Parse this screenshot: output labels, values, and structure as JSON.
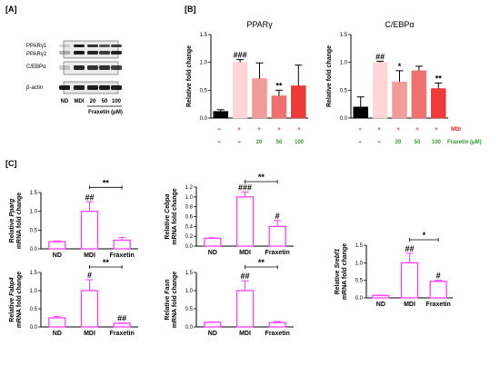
{
  "panel_labels": {
    "a": "[A]",
    "b": "[B]",
    "c": "[C]"
  },
  "colors": {
    "bar_b": [
      "#000000",
      "#ffd6d6",
      "#f29b9b",
      "#f07070",
      "#ef3a3a"
    ],
    "bar_c": "#ff3dff",
    "mdi_text": "#e02020",
    "fraxetin_text": "#2e9a2e"
  },
  "western_blot": {
    "bands": [
      "PPARγ1",
      "PPARγ2",
      "C/EBPα",
      "β-actin"
    ],
    "lanes": [
      "ND",
      "MDI",
      "20",
      "50",
      "100"
    ],
    "treatment_label": "Fraxetin (μM)"
  },
  "conditions": {
    "mdi_row": [
      "−",
      "+",
      "+",
      "+",
      "+"
    ],
    "mdi_label": "MDI",
    "fraxetin_row": [
      "−",
      "−",
      "20",
      "50",
      "100"
    ],
    "fraxetin_label": "Fraxetin (μM)"
  },
  "chart_data": [
    {
      "type": "bar",
      "panel": "B",
      "title": "PPARγ",
      "ylabel": "Relative fold change",
      "categories": [
        "ND",
        "MDI",
        "20",
        "50",
        "100"
      ],
      "values": [
        0.12,
        1.0,
        0.71,
        0.4,
        0.58
      ],
      "errors": [
        0.03,
        0.05,
        0.28,
        0.1,
        0.37
      ],
      "significance": [
        "",
        "###",
        "",
        "**",
        ""
      ],
      "ylim": [
        0,
        1.5
      ],
      "yticks": [
        "0.0",
        "0.5",
        "1.0",
        "1.5"
      ]
    },
    {
      "type": "bar",
      "panel": "B",
      "title": "C/EBPα",
      "ylabel": "Relative fold change",
      "categories": [
        "ND",
        "MDI",
        "20",
        "50",
        "100"
      ],
      "values": [
        0.2,
        1.0,
        0.65,
        0.85,
        0.53
      ],
      "errors": [
        0.18,
        0.02,
        0.2,
        0.08,
        0.1
      ],
      "significance": [
        "",
        "##",
        "*",
        "",
        "**"
      ],
      "ylim": [
        0,
        1.5
      ],
      "yticks": [
        "0.0",
        "0.5",
        "1.0",
        "1.5"
      ]
    },
    {
      "type": "bar",
      "panel": "C",
      "gene": "Pparg",
      "ylabel_pre": "Relative ",
      "ylabel_line2": "mRNA fold change",
      "categories": [
        "ND",
        "MDI",
        "Fraxetin"
      ],
      "values": [
        0.19,
        1.0,
        0.23
      ],
      "errors": [
        0.02,
        0.25,
        0.07
      ],
      "significance": [
        "",
        "##",
        ""
      ],
      "bracket": "**",
      "ylim": [
        0,
        1.5
      ],
      "yticks": [
        "0.0",
        "0.5",
        "1.0",
        "1.5"
      ]
    },
    {
      "type": "bar",
      "panel": "C",
      "gene": "Cebpa",
      "ylabel_pre": "Relative ",
      "ylabel_line2": "mRNA fold change",
      "categories": [
        "ND",
        "MDI",
        "Fraxetin"
      ],
      "values": [
        0.16,
        1.0,
        0.4
      ],
      "errors": [
        0.01,
        0.1,
        0.12
      ],
      "significance": [
        "",
        "###",
        "#"
      ],
      "bracket": "**",
      "ylim": [
        0,
        1.2
      ],
      "yticks": [
        "0.0",
        "0.2",
        "0.4",
        "0.6",
        "0.8",
        "1.0",
        "1.2"
      ]
    },
    {
      "type": "bar",
      "panel": "C",
      "gene": "Srebf1",
      "ylabel_pre": "Relative ",
      "ylabel_line2": "mRNA fold change",
      "categories": [
        "ND",
        "MDI",
        "Fraxetin"
      ],
      "values": [
        0.07,
        1.0,
        0.47
      ],
      "errors": [
        0.01,
        0.27,
        0.03
      ],
      "significance": [
        "",
        "##",
        "#"
      ],
      "bracket": "*",
      "ylim": [
        0,
        1.5
      ],
      "yticks": [
        "0.0",
        "0.5",
        "1.0",
        "1.5"
      ]
    },
    {
      "type": "bar",
      "panel": "C",
      "gene": "Fabp4",
      "ylabel_pre": "Relative ",
      "ylabel_line2": "mRNA fold change",
      "categories": [
        "ND",
        "MDI",
        "Fraxetin"
      ],
      "values": [
        0.25,
        1.0,
        0.1
      ],
      "errors": [
        0.04,
        0.3,
        0.01
      ],
      "significance": [
        "",
        "#",
        "##"
      ],
      "bracket": "**",
      "ylim": [
        0,
        1.5
      ],
      "yticks": [
        "0.0",
        "0.5",
        "1.0",
        "1.5"
      ]
    },
    {
      "type": "bar",
      "panel": "C",
      "gene": "Fasn",
      "ylabel_pre": "Relative ",
      "ylabel_line2": "mRNA fold change",
      "categories": [
        "ND",
        "MDI",
        "Fraxetin"
      ],
      "values": [
        0.13,
        1.0,
        0.12
      ],
      "errors": [
        0.01,
        0.27,
        0.03
      ],
      "significance": [
        "",
        "##",
        ""
      ],
      "bracket": "**",
      "ylim": [
        0,
        1.5
      ],
      "yticks": [
        "0.0",
        "0.5",
        "1.0",
        "1.5"
      ]
    }
  ]
}
